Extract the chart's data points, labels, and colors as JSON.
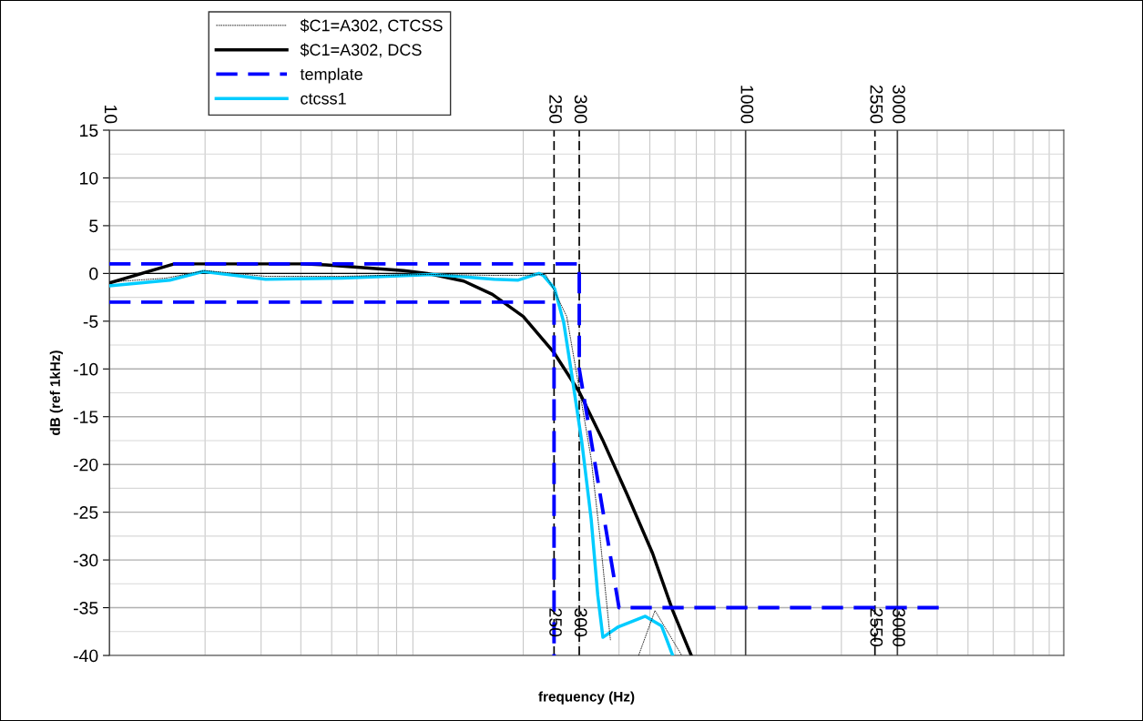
{
  "chart_data": {
    "type": "line",
    "xlabel": "frequency (Hz)",
    "ylabel": "dB (ref 1kHz)",
    "log": "x",
    "xlim": [
      10,
      10000
    ],
    "ylim": [
      -40,
      15
    ],
    "yticks": [
      -40,
      -35,
      -30,
      -25,
      -20,
      -15,
      -10,
      -5,
      0,
      5,
      10,
      15
    ],
    "tick_labels": "y",
    "grid": true,
    "legend": "top",
    "series": [
      {
        "name": "$C1=A302, CTCSS",
        "color": "#000000",
        "line_style": "dotted",
        "x": [
          10,
          15,
          20,
          31,
          54,
          100,
          160,
          200,
          235,
          246,
          274,
          300,
          327,
          348,
          376,
          420,
          461,
          519,
          630
        ],
        "values": [
          -0.9,
          -0.5,
          0.3,
          -0.3,
          -0.3,
          -0.1,
          -0.2,
          -0.2,
          -0.1,
          -1.3,
          -4.5,
          -12.1,
          -19.4,
          -27.4,
          -38.4,
          null,
          -40,
          -35.3,
          -40
        ]
      },
      {
        "name": "$C1=A302, DCS",
        "color": "#000000",
        "line_style": "solid",
        "x": [
          10,
          16,
          40,
          48,
          84,
          100,
          130,
          160,
          200,
          250,
          300,
          355,
          425,
          510,
          590,
          675
        ],
        "values": [
          -1.0,
          1.0,
          1.0,
          0.9,
          0.3,
          0,
          -0.8,
          -2.2,
          -4.5,
          -8.3,
          -12.4,
          -17.4,
          -23.2,
          -29.3,
          -35.3,
          -40
        ]
      },
      {
        "name": "template",
        "color": "#0000ff",
        "line_style": "dashed",
        "x": [
          10,
          300,
          300,
          400,
          4100,
          2000,
          10,
          250,
          250
        ],
        "values": [
          1,
          1,
          -10,
          -35,
          -35,
          null,
          -3,
          -3,
          -40
        ]
      },
      {
        "name": "ctcss1",
        "color": "#00ccff",
        "line_style": "solid",
        "x": [
          10,
          15.5,
          19.7,
          31,
          54,
          104,
          162,
          193,
          224,
          231,
          251,
          268,
          286,
          306,
          327,
          343,
          356,
          398,
          484,
          544,
          590
        ],
        "values": [
          -1.3,
          -0.7,
          0.2,
          -0.6,
          -0.5,
          -0.1,
          -0.6,
          -0.7,
          0,
          -0.2,
          -1.6,
          -5.1,
          -11.2,
          -17.8,
          -25.7,
          -33.7,
          -38.1,
          -37,
          -35.9,
          -36.9,
          -40
        ]
      }
    ],
    "ref_lines": [
      {
        "axis": "x",
        "value": 250,
        "label": "250",
        "color": "#000000",
        "line_style": "dashed"
      },
      {
        "axis": "x",
        "value": 300,
        "label": "300",
        "color": "#000000",
        "line_style": "dashed"
      },
      {
        "axis": "x",
        "value": 10,
        "label": "10",
        "color": "#404040",
        "line_style": "solid"
      },
      {
        "axis": "x",
        "value": 1000,
        "label": "1000",
        "color": "#404040",
        "line_style": "solid"
      },
      {
        "axis": "x",
        "value": 2550,
        "label": "2550",
        "color": "#000000",
        "line_style": "dashed"
      },
      {
        "axis": "x",
        "value": 3000,
        "label": "3000",
        "color": "#404040",
        "line_style": "solid"
      }
    ],
    "annotations": [
      {
        "text": "250",
        "x": 250,
        "y": -35
      },
      {
        "text": "300",
        "x": 300,
        "y": -35
      },
      {
        "text": "2550",
        "x": 2550,
        "y": -35
      },
      {
        "text": "3000",
        "x": 3000,
        "y": -35
      }
    ]
  }
}
